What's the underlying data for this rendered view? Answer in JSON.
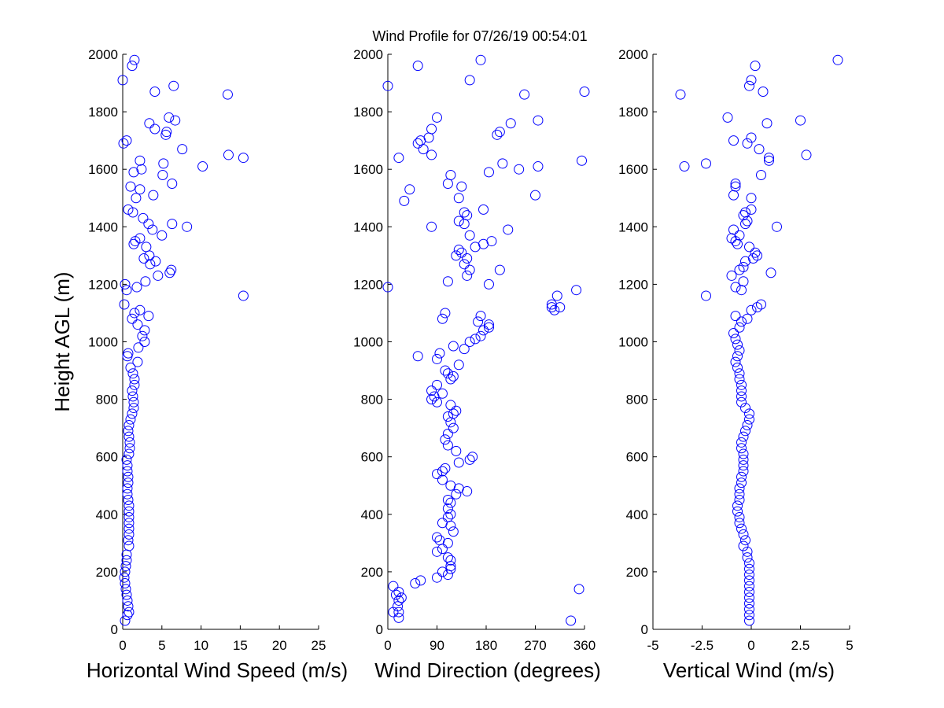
{
  "title": "Wind Profile for  07/26/19 00:54:01",
  "chart_data": [
    {
      "type": "scatter",
      "xlabel": "Horizontal Wind Speed (m/s)",
      "ylabel": "Height AGL (m)",
      "xlim": [
        0,
        25
      ],
      "ylim": [
        0,
        2000
      ],
      "xticks": [
        "0",
        "5",
        "10",
        "15",
        "20",
        "25"
      ],
      "yticks": [
        "0",
        "200",
        "400",
        "600",
        "800",
        "1000",
        "1200",
        "1400",
        "1600",
        "1800",
        "2000"
      ],
      "marker_color": "#0000ff",
      "points": [
        [
          0.3,
          30
        ],
        [
          0.6,
          50
        ],
        [
          0.8,
          60
        ],
        [
          0.7,
          80
        ],
        [
          0.6,
          100
        ],
        [
          0.5,
          120
        ],
        [
          0.4,
          140
        ],
        [
          0.3,
          160
        ],
        [
          0.2,
          180
        ],
        [
          0.3,
          200
        ],
        [
          0.4,
          220
        ],
        [
          0.5,
          240
        ],
        [
          0.5,
          260
        ],
        [
          0.8,
          290
        ],
        [
          0.7,
          310
        ],
        [
          0.8,
          330
        ],
        [
          0.8,
          350
        ],
        [
          0.8,
          370
        ],
        [
          0.8,
          390
        ],
        [
          0.8,
          410
        ],
        [
          0.8,
          430
        ],
        [
          0.7,
          450
        ],
        [
          0.6,
          470
        ],
        [
          0.6,
          490
        ],
        [
          0.7,
          510
        ],
        [
          0.7,
          530
        ],
        [
          0.6,
          550
        ],
        [
          0.6,
          570
        ],
        [
          0.5,
          590
        ],
        [
          0.8,
          610
        ],
        [
          0.9,
          630
        ],
        [
          0.9,
          650
        ],
        [
          0.8,
          670
        ],
        [
          0.7,
          690
        ],
        [
          0.8,
          710
        ],
        [
          1.0,
          730
        ],
        [
          1.2,
          750
        ],
        [
          1.4,
          770
        ],
        [
          1.4,
          790
        ],
        [
          1.3,
          810
        ],
        [
          1.2,
          830
        ],
        [
          1.5,
          850
        ],
        [
          1.5,
          870
        ],
        [
          1.3,
          890
        ],
        [
          1.0,
          910
        ],
        [
          1.9,
          930
        ],
        [
          0.6,
          950
        ],
        [
          0.7,
          960
        ],
        [
          2.0,
          980
        ],
        [
          2.8,
          1000
        ],
        [
          2.5,
          1020
        ],
        [
          2.8,
          1040
        ],
        [
          1.9,
          1060
        ],
        [
          1.2,
          1080
        ],
        [
          3.3,
          1090
        ],
        [
          1.5,
          1100
        ],
        [
          2.2,
          1110
        ],
        [
          0.2,
          1130
        ],
        [
          15.4,
          1160
        ],
        [
          0.5,
          1180
        ],
        [
          1.8,
          1190
        ],
        [
          0.3,
          1200
        ],
        [
          2.9,
          1210
        ],
        [
          6.0,
          1240
        ],
        [
          4.5,
          1230
        ],
        [
          6.2,
          1250
        ],
        [
          3.5,
          1270
        ],
        [
          4.2,
          1280
        ],
        [
          2.7,
          1290
        ],
        [
          3.4,
          1300
        ],
        [
          3.0,
          1330
        ],
        [
          1.4,
          1340
        ],
        [
          1.6,
          1350
        ],
        [
          2.2,
          1360
        ],
        [
          5.0,
          1370
        ],
        [
          3.8,
          1390
        ],
        [
          8.2,
          1400
        ],
        [
          6.3,
          1410
        ],
        [
          1.3,
          1450
        ],
        [
          0.7,
          1460
        ],
        [
          3.3,
          1410
        ],
        [
          2.6,
          1430
        ],
        [
          1.7,
          1500
        ],
        [
          3.9,
          1510
        ],
        [
          2.2,
          1530
        ],
        [
          1.0,
          1540
        ],
        [
          6.3,
          1550
        ],
        [
          5.1,
          1580
        ],
        [
          2.4,
          1600
        ],
        [
          1.4,
          1590
        ],
        [
          5.2,
          1620
        ],
        [
          10.2,
          1610
        ],
        [
          2.2,
          1630
        ],
        [
          15.4,
          1640
        ],
        [
          13.5,
          1650
        ],
        [
          7.6,
          1670
        ],
        [
          0.1,
          1690
        ],
        [
          0.5,
          1700
        ],
        [
          5.5,
          1720
        ],
        [
          5.6,
          1730
        ],
        [
          4.1,
          1740
        ],
        [
          3.4,
          1760
        ],
        [
          6.7,
          1770
        ],
        [
          5.9,
          1780
        ],
        [
          13.4,
          1860
        ],
        [
          4.1,
          1870
        ],
        [
          6.5,
          1890
        ],
        [
          0.0,
          1910
        ],
        [
          1.2,
          1960
        ],
        [
          1.5,
          1980
        ]
      ]
    },
    {
      "type": "scatter",
      "xlabel": "Wind Direction (degrees)",
      "xlim": [
        0,
        360
      ],
      "ylim": [
        0,
        2000
      ],
      "xticks": [
        "0",
        "90",
        "180",
        "270",
        "360"
      ],
      "yticks": [
        "0",
        "200",
        "400",
        "600",
        "800",
        "1000",
        "1200",
        "1400",
        "1600",
        "1800",
        "2000"
      ],
      "marker_color": "#0000ff",
      "points": [
        [
          335,
          30
        ],
        [
          20,
          40
        ],
        [
          20,
          60
        ],
        [
          10,
          60
        ],
        [
          18,
          80
        ],
        [
          20,
          100
        ],
        [
          25,
          110
        ],
        [
          15,
          120
        ],
        [
          20,
          130
        ],
        [
          350,
          140
        ],
        [
          10,
          150
        ],
        [
          50,
          160
        ],
        [
          60,
          170
        ],
        [
          90,
          180
        ],
        [
          110,
          190
        ],
        [
          100,
          200
        ],
        [
          115,
          210
        ],
        [
          115,
          220
        ],
        [
          115,
          240
        ],
        [
          110,
          250
        ],
        [
          90,
          270
        ],
        [
          100,
          280
        ],
        [
          110,
          300
        ],
        [
          95,
          310
        ],
        [
          90,
          320
        ],
        [
          120,
          340
        ],
        [
          115,
          360
        ],
        [
          100,
          370
        ],
        [
          110,
          390
        ],
        [
          115,
          400
        ],
        [
          110,
          420
        ],
        [
          115,
          440
        ],
        [
          110,
          450
        ],
        [
          125,
          470
        ],
        [
          145,
          480
        ],
        [
          130,
          490
        ],
        [
          115,
          500
        ],
        [
          100,
          520
        ],
        [
          90,
          540
        ],
        [
          100,
          550
        ],
        [
          105,
          560
        ],
        [
          130,
          580
        ],
        [
          150,
          590
        ],
        [
          155,
          600
        ],
        [
          125,
          620
        ],
        [
          110,
          640
        ],
        [
          105,
          660
        ],
        [
          110,
          680
        ],
        [
          120,
          700
        ],
        [
          115,
          720
        ],
        [
          110,
          740
        ],
        [
          120,
          750
        ],
        [
          125,
          760
        ],
        [
          115,
          780
        ],
        [
          90,
          790
        ],
        [
          80,
          800
        ],
        [
          85,
          810
        ],
        [
          100,
          820
        ],
        [
          80,
          830
        ],
        [
          90,
          850
        ],
        [
          115,
          870
        ],
        [
          120,
          880
        ],
        [
          110,
          890
        ],
        [
          105,
          900
        ],
        [
          130,
          920
        ],
        [
          90,
          940
        ],
        [
          55,
          950
        ],
        [
          95,
          960
        ],
        [
          140,
          975
        ],
        [
          120,
          985
        ],
        [
          150,
          1000
        ],
        [
          160,
          1010
        ],
        [
          170,
          1020
        ],
        [
          175,
          1040
        ],
        [
          185,
          1050
        ],
        [
          185,
          1060
        ],
        [
          165,
          1070
        ],
        [
          170,
          1090
        ],
        [
          100,
          1080
        ],
        [
          105,
          1100
        ],
        [
          305,
          1110
        ],
        [
          300,
          1120
        ],
        [
          315,
          1120
        ],
        [
          300,
          1130
        ],
        [
          310,
          1160
        ],
        [
          345,
          1180
        ],
        [
          0,
          1190
        ],
        [
          185,
          1200
        ],
        [
          110,
          1210
        ],
        [
          145,
          1230
        ],
        [
          150,
          1250
        ],
        [
          205,
          1250
        ],
        [
          140,
          1270
        ],
        [
          145,
          1290
        ],
        [
          125,
          1300
        ],
        [
          135,
          1310
        ],
        [
          130,
          1320
        ],
        [
          160,
          1330
        ],
        [
          175,
          1340
        ],
        [
          190,
          1350
        ],
        [
          150,
          1370
        ],
        [
          220,
          1390
        ],
        [
          80,
          1400
        ],
        [
          140,
          1410
        ],
        [
          130,
          1420
        ],
        [
          145,
          1440
        ],
        [
          140,
          1450
        ],
        [
          175,
          1460
        ],
        [
          30,
          1490
        ],
        [
          130,
          1500
        ],
        [
          270,
          1510
        ],
        [
          40,
          1530
        ],
        [
          135,
          1540
        ],
        [
          110,
          1550
        ],
        [
          115,
          1580
        ],
        [
          185,
          1590
        ],
        [
          240,
          1600
        ],
        [
          275,
          1610
        ],
        [
          210,
          1620
        ],
        [
          355,
          1630
        ],
        [
          20,
          1640
        ],
        [
          80,
          1650
        ],
        [
          65,
          1670
        ],
        [
          55,
          1690
        ],
        [
          60,
          1700
        ],
        [
          75,
          1710
        ],
        [
          200,
          1720
        ],
        [
          205,
          1730
        ],
        [
          80,
          1740
        ],
        [
          225,
          1760
        ],
        [
          275,
          1770
        ],
        [
          90,
          1780
        ],
        [
          250,
          1860
        ],
        [
          360,
          1870
        ],
        [
          0,
          1890
        ],
        [
          150,
          1910
        ],
        [
          55,
          1960
        ],
        [
          170,
          1980
        ]
      ]
    },
    {
      "type": "scatter",
      "xlabel": "Vertical Wind (m/s)",
      "xlim": [
        -5,
        5
      ],
      "ylim": [
        0,
        2000
      ],
      "xticks": [
        "-5",
        "-2.5",
        "0",
        "2.5",
        "5"
      ],
      "yticks": [
        "0",
        "200",
        "400",
        "600",
        "800",
        "1000",
        "1200",
        "1400",
        "1600",
        "1800",
        "2000"
      ],
      "marker_color": "#0000ff",
      "points": [
        [
          -0.1,
          30
        ],
        [
          -0.1,
          50
        ],
        [
          -0.1,
          70
        ],
        [
          -0.1,
          90
        ],
        [
          -0.1,
          110
        ],
        [
          -0.1,
          130
        ],
        [
          -0.1,
          150
        ],
        [
          -0.1,
          170
        ],
        [
          -0.1,
          190
        ],
        [
          -0.1,
          210
        ],
        [
          -0.1,
          230
        ],
        [
          -0.2,
          250
        ],
        [
          -0.2,
          270
        ],
        [
          -0.4,
          290
        ],
        [
          -0.3,
          310
        ],
        [
          -0.4,
          330
        ],
        [
          -0.5,
          350
        ],
        [
          -0.6,
          370
        ],
        [
          -0.6,
          390
        ],
        [
          -0.7,
          410
        ],
        [
          -0.7,
          430
        ],
        [
          -0.6,
          450
        ],
        [
          -0.6,
          470
        ],
        [
          -0.6,
          490
        ],
        [
          -0.5,
          510
        ],
        [
          -0.5,
          530
        ],
        [
          -0.4,
          550
        ],
        [
          -0.4,
          570
        ],
        [
          -0.4,
          590
        ],
        [
          -0.4,
          610
        ],
        [
          -0.5,
          630
        ],
        [
          -0.5,
          650
        ],
        [
          -0.4,
          670
        ],
        [
          -0.3,
          690
        ],
        [
          -0.2,
          710
        ],
        [
          -0.1,
          730
        ],
        [
          -0.1,
          750
        ],
        [
          -0.3,
          770
        ],
        [
          -0.5,
          790
        ],
        [
          -0.5,
          810
        ],
        [
          -0.5,
          830
        ],
        [
          -0.5,
          850
        ],
        [
          -0.6,
          870
        ],
        [
          -0.6,
          890
        ],
        [
          -0.7,
          910
        ],
        [
          -0.8,
          930
        ],
        [
          -0.7,
          950
        ],
        [
          -0.6,
          970
        ],
        [
          -0.7,
          990
        ],
        [
          -0.8,
          1010
        ],
        [
          -0.9,
          1030
        ],
        [
          -0.6,
          1050
        ],
        [
          -0.5,
          1070
        ],
        [
          -0.8,
          1090
        ],
        [
          -0.2,
          1080
        ],
        [
          0.0,
          1110
        ],
        [
          0.3,
          1120
        ],
        [
          0.5,
          1130
        ],
        [
          -2.3,
          1160
        ],
        [
          -0.5,
          1180
        ],
        [
          -0.8,
          1190
        ],
        [
          -0.4,
          1210
        ],
        [
          -1.0,
          1230
        ],
        [
          1.0,
          1240
        ],
        [
          -0.6,
          1250
        ],
        [
          -0.4,
          1260
        ],
        [
          -0.3,
          1280
        ],
        [
          0.1,
          1290
        ],
        [
          0.3,
          1300
        ],
        [
          0.2,
          1310
        ],
        [
          -0.1,
          1330
        ],
        [
          -0.7,
          1340
        ],
        [
          -0.8,
          1350
        ],
        [
          -1.0,
          1360
        ],
        [
          -0.6,
          1370
        ],
        [
          -0.9,
          1390
        ],
        [
          1.3,
          1400
        ],
        [
          -0.3,
          1410
        ],
        [
          -0.2,
          1420
        ],
        [
          -0.4,
          1440
        ],
        [
          -0.3,
          1450
        ],
        [
          0.0,
          1460
        ],
        [
          -0.9,
          1510
        ],
        [
          0.0,
          1500
        ],
        [
          -0.8,
          1540
        ],
        [
          -0.8,
          1550
        ],
        [
          0.5,
          1580
        ],
        [
          -2.3,
          1620
        ],
        [
          -3.4,
          1610
        ],
        [
          0.9,
          1630
        ],
        [
          0.9,
          1640
        ],
        [
          2.8,
          1650
        ],
        [
          0.4,
          1670
        ],
        [
          -0.2,
          1690
        ],
        [
          -0.9,
          1700
        ],
        [
          0.0,
          1710
        ],
        [
          0.8,
          1760
        ],
        [
          -1.2,
          1780
        ],
        [
          2.5,
          1770
        ],
        [
          0.6,
          1870
        ],
        [
          -3.6,
          1860
        ],
        [
          -0.1,
          1890
        ],
        [
          0.0,
          1910
        ],
        [
          0.2,
          1960
        ],
        [
          4.4,
          1980
        ]
      ]
    }
  ]
}
